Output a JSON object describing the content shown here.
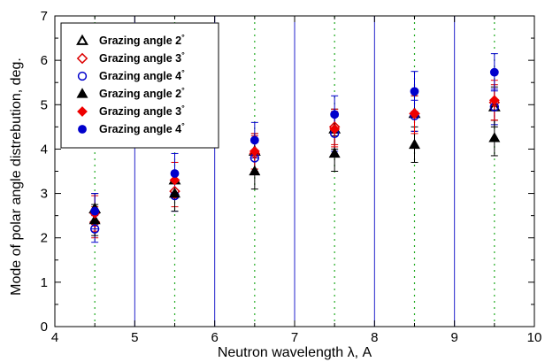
{
  "chart_data": {
    "type": "scatter",
    "title": "",
    "xlabel": "Neutron wavelength λ, A",
    "ylabel": "Mode of polar angle distrebution, deg.",
    "xlim": [
      4,
      10
    ],
    "ylim": [
      0,
      7
    ],
    "x_ticks": [
      "4",
      "5",
      "6",
      "7",
      "8",
      "9",
      "10"
    ],
    "y_ticks": [
      "0",
      "1",
      "2",
      "3",
      "4",
      "5",
      "6",
      "7"
    ],
    "grid": "vertical solid lines at integer x (blue), dotted lines at half-integer x (green)",
    "legend_position": "top-left",
    "x": [
      4.5,
      5.5,
      6.5,
      7.5,
      8.5,
      9.5
    ],
    "series": [
      {
        "name": "Grazing angle 2°",
        "marker": "open-triangle",
        "color": "#000000",
        "values": [
          2.65,
          3.3,
          3.95,
          4.45,
          4.8,
          4.95
        ],
        "error": [
          0.35,
          0.4,
          0.4,
          0.45,
          0.4,
          0.45
        ]
      },
      {
        "name": "Grazing angle 3°",
        "marker": "open-diamond",
        "color": "#dd0000",
        "values": [
          2.35,
          3.05,
          3.9,
          4.5,
          4.8,
          5.05
        ],
        "error": [
          0.35,
          0.35,
          0.4,
          0.4,
          0.4,
          0.4
        ]
      },
      {
        "name": "Grazing angle 4°",
        "marker": "open-circle",
        "color": "#0000cc",
        "values": [
          2.2,
          2.95,
          3.8,
          4.35,
          4.75,
          4.95
        ],
        "error": [
          0.3,
          0.35,
          0.35,
          0.4,
          0.35,
          0.4
        ]
      },
      {
        "name": "Grazing angle 2°",
        "marker": "filled-triangle",
        "color": "#000000",
        "values": [
          2.4,
          3.0,
          3.5,
          3.9,
          4.1,
          4.25
        ],
        "error": [
          0.35,
          0.4,
          0.4,
          0.4,
          0.4,
          0.4
        ]
      },
      {
        "name": "Grazing angle 3°",
        "marker": "filled-diamond",
        "color": "#ee0000",
        "values": [
          2.55,
          3.3,
          3.95,
          4.45,
          4.8,
          5.1
        ],
        "error": [
          0.4,
          0.4,
          0.4,
          0.4,
          0.45,
          0.45
        ]
      },
      {
        "name": "Grazing angle 4°",
        "marker": "filled-circle",
        "color": "#0000cc",
        "values": [
          2.6,
          3.45,
          4.2,
          4.78,
          5.3,
          5.73
        ],
        "error": [
          0.4,
          0.45,
          0.4,
          0.42,
          0.45,
          0.42
        ]
      }
    ]
  }
}
